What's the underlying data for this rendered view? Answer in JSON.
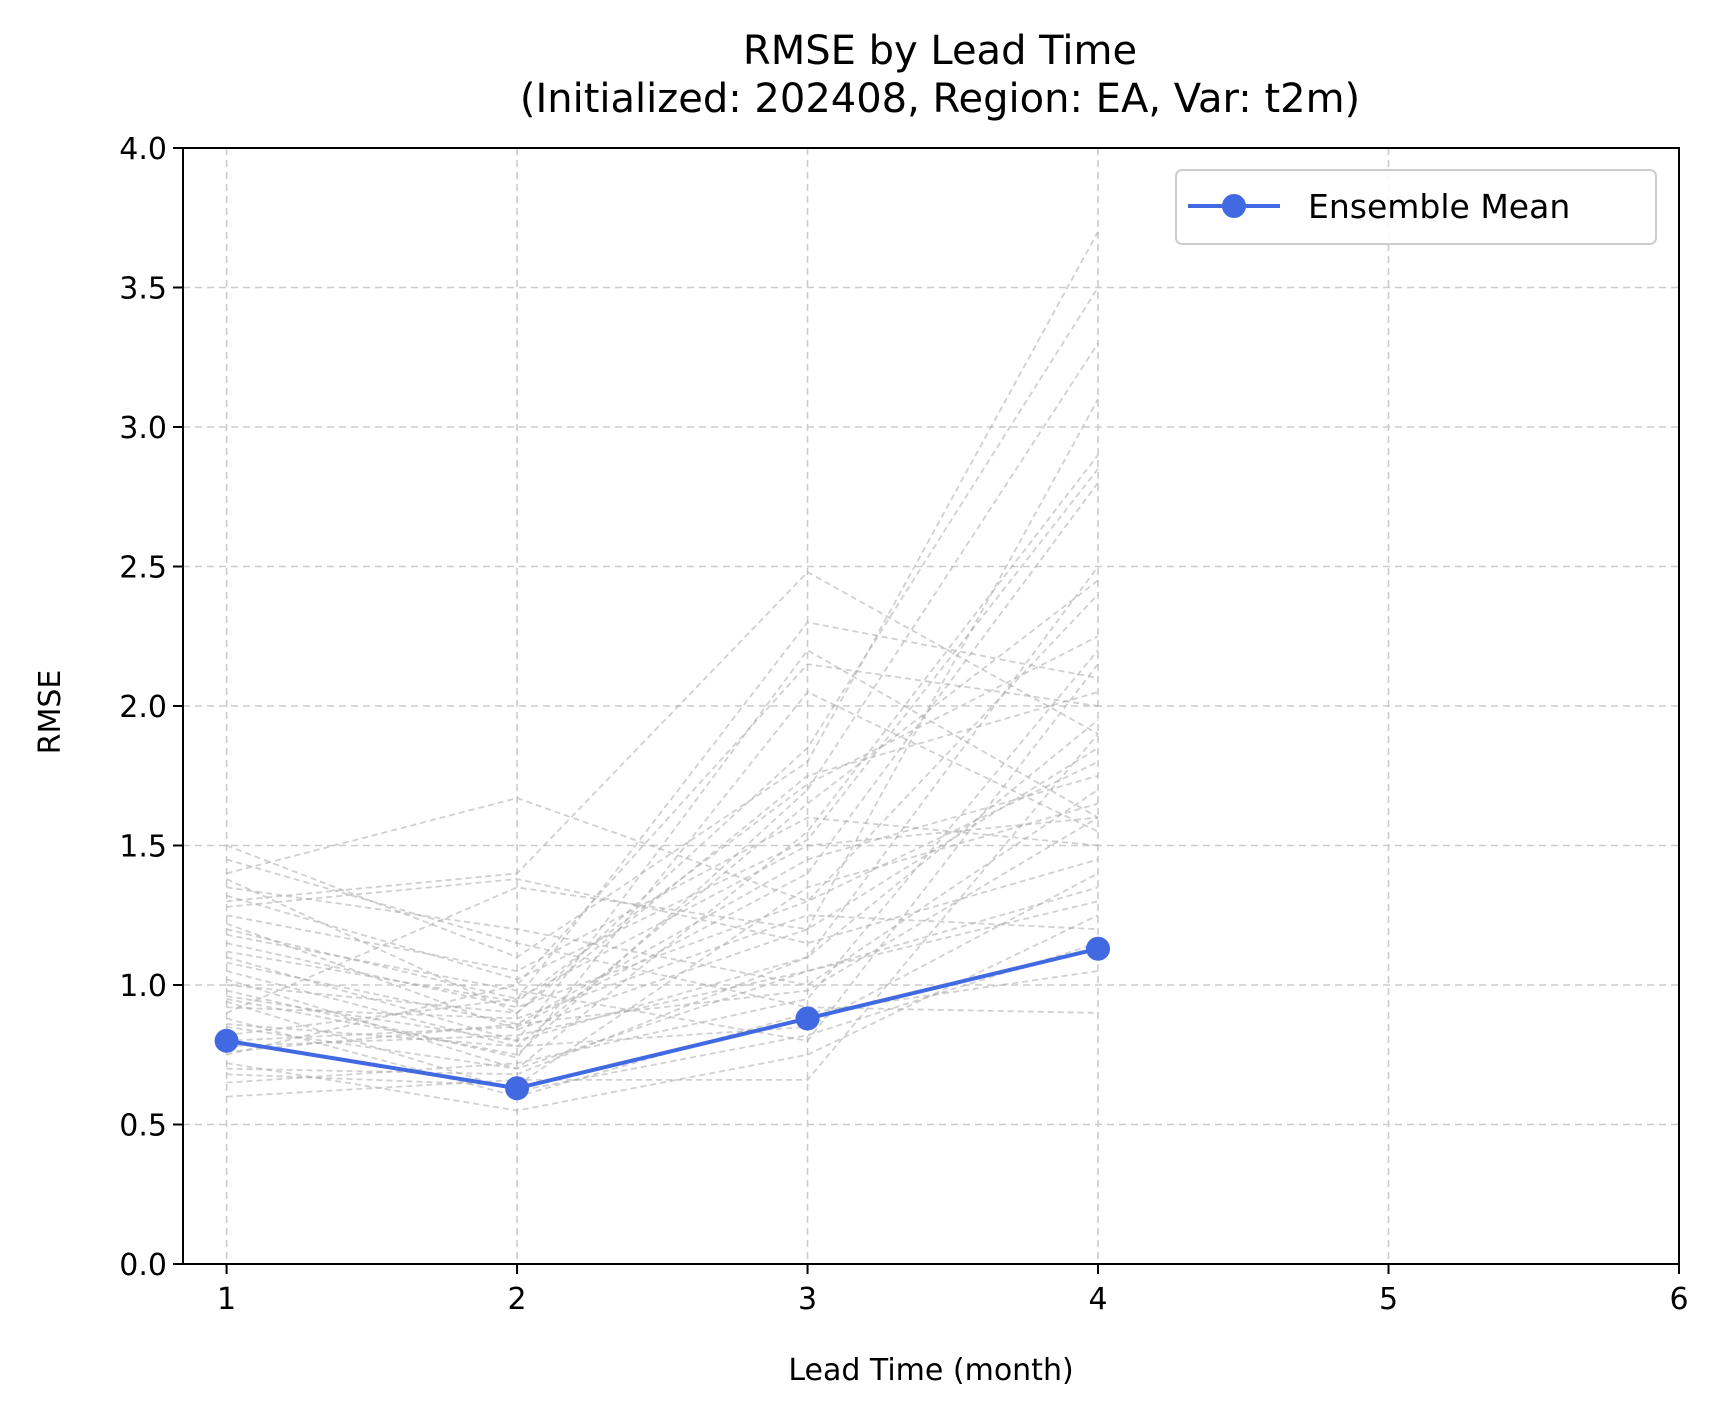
{
  "chart_data": {
    "type": "line",
    "title": "RMSE by Lead Time",
    "subtitle": "(Initialized: 202408, Region: EA, Var: t2m)",
    "xlabel": "Lead Time (month)",
    "ylabel": "RMSE",
    "xlim": [
      0.85,
      6
    ],
    "ylim": [
      0,
      4
    ],
    "xticks": [
      1,
      2,
      3,
      4,
      5,
      6
    ],
    "yticks": [
      "0.0",
      "0.5",
      "1.0",
      "1.5",
      "2.0",
      "2.5",
      "3.0",
      "3.5",
      "4.0"
    ],
    "grid": true,
    "legend_placement": "top-right",
    "x": [
      1,
      2,
      3,
      4
    ],
    "series": [
      {
        "name": "Ensemble Mean",
        "color": "#4169e1",
        "marker": "circle",
        "values": [
          0.8,
          0.63,
          0.88,
          1.13
        ]
      }
    ],
    "member_color": "#a9a9a9",
    "members": [
      [
        1.5,
        1.1,
        1.8,
        3.7
      ],
      [
        1.4,
        1.67,
        1.3,
        2.4
      ],
      [
        1.3,
        1.4,
        2.48,
        1.9
      ],
      [
        1.2,
        0.95,
        2.3,
        2.1
      ],
      [
        1.1,
        0.8,
        2.2,
        1.6
      ],
      [
        1.0,
        0.9,
        1.85,
        3.5
      ],
      [
        0.95,
        0.75,
        1.7,
        3.3
      ],
      [
        0.9,
        1.35,
        1.2,
        3.1
      ],
      [
        0.85,
        0.7,
        1.55,
        2.9
      ],
      [
        0.8,
        0.85,
        1.4,
        2.8
      ],
      [
        0.75,
        1.0,
        2.15,
        2.0
      ],
      [
        0.7,
        0.68,
        1.1,
        2.5
      ],
      [
        0.65,
        0.72,
        0.95,
        2.2
      ],
      [
        0.6,
        0.66,
        0.66,
        1.9
      ],
      [
        1.35,
        1.2,
        1.0,
        1.7
      ],
      [
        1.25,
        1.05,
        1.6,
        1.5
      ],
      [
        1.15,
        0.92,
        1.3,
        1.8
      ],
      [
        1.05,
        0.78,
        0.85,
        1.4
      ],
      [
        0.92,
        0.88,
        1.25,
        1.2
      ],
      [
        0.88,
        0.6,
        0.9,
        1.05
      ],
      [
        0.82,
        0.95,
        1.5,
        1.6
      ],
      [
        0.78,
        0.82,
        1.05,
        1.3
      ],
      [
        1.38,
        0.9,
        1.75,
        2.05
      ],
      [
        1.28,
        1.38,
        1.15,
        1.45
      ],
      [
        1.18,
        0.98,
        0.8,
        2.15
      ],
      [
        1.08,
        0.86,
        1.45,
        1.75
      ],
      [
        0.98,
        0.74,
        2.05,
        1.55
      ],
      [
        0.72,
        0.55,
        0.75,
        1.25
      ],
      [
        0.68,
        0.64,
        1.35,
        1.65
      ],
      [
        1.45,
        1.15,
        0.92,
        0.9
      ],
      [
        1.22,
        0.84,
        1.2,
        1.85
      ],
      [
        1.02,
        0.7,
        1.05,
        1.35
      ],
      [
        0.94,
        0.62,
        0.82,
        1.15
      ],
      [
        0.86,
        0.78,
        1.65,
        2.45
      ],
      [
        0.76,
        0.86,
        0.98,
        1.6
      ],
      [
        1.32,
        1.02,
        1.52,
        2.85
      ],
      [
        1.12,
        0.94,
        1.72,
        2.25
      ],
      [
        0.96,
        0.8,
        1.1,
        1.95
      ]
    ]
  }
}
